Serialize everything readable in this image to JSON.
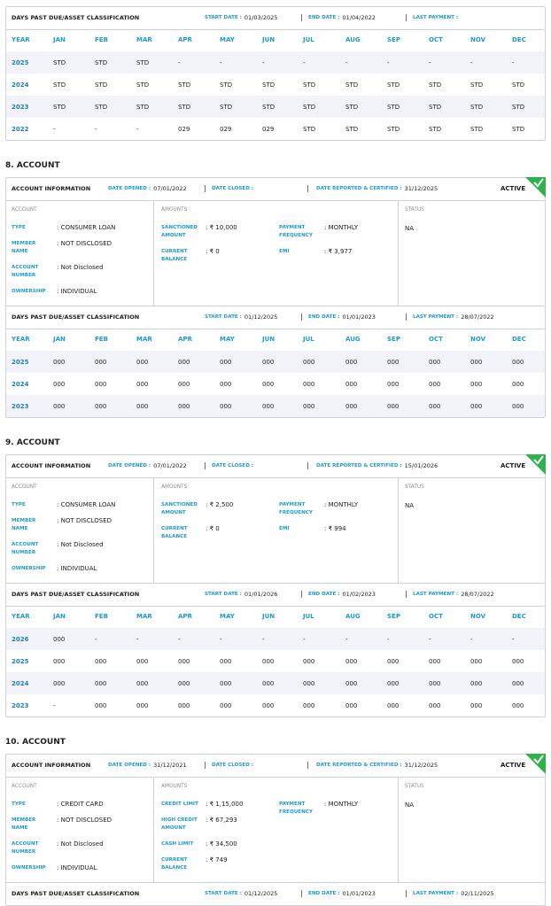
{
  "sections": [
    {
      "dpd": {
        "title": "DAYS PAST DUE/ASSET CLASSIFICATION",
        "start_label": "START DATE :",
        "start": "01/03/2025",
        "end_label": "END DATE :",
        "end": "01/04/2022",
        "last_label": "LAST PAYMENT :",
        "header": [
          "YEAR",
          "JAN",
          "FEB",
          "MAR",
          "APR",
          "MAY",
          "JUN",
          "JUL",
          "AUG",
          "SEP",
          "OCT",
          "NOV",
          "DEC"
        ],
        "rows": [
          [
            "2025",
            "STD",
            "STD",
            "STD",
            "-",
            "-",
            "-",
            "-",
            "-",
            "-",
            "-",
            "-",
            "-"
          ],
          [
            "2024",
            "STD",
            "STD",
            "STD",
            "STD",
            "STD",
            "STD",
            "STD",
            "STD",
            "STD",
            "STD",
            "STD",
            "STD"
          ],
          [
            "2023",
            "STD",
            "STD",
            "STD",
            "STD",
            "STD",
            "STD",
            "STD",
            "STD",
            "STD",
            "STD",
            "STD",
            "STD"
          ],
          [
            "2022",
            "-",
            "-",
            "-",
            "029",
            "029",
            "029",
            "STD",
            "STD",
            "STD",
            "STD",
            "STD",
            "STD"
          ]
        ]
      }
    },
    {
      "heading": "8. ACCOUNT",
      "info": {
        "title": "ACCOUNT INFORMATION",
        "opened_label": "DATE OPENED :",
        "opened": "07/01/2022",
        "closed_label": "DATE CLOSED :",
        "reported_label": "DATE REPORTED & CERTIFIED :",
        "reported": "31/12/2025",
        "status": "ACTIVE"
      },
      "details": {
        "account_title": "ACCOUNT",
        "fields": [
          {
            "label": "TYPE",
            "value": ": CONSUMER LOAN"
          },
          {
            "label": "MEMBER NAME",
            "value": ": NOT DISCLOSED"
          },
          {
            "label": "ACCOUNT NUMBER",
            "value": ": Not Disclosed"
          },
          {
            "label": "OWNERSHIP",
            "value": ": INDIVIDUAL"
          }
        ],
        "amounts_title": "AMOUNTS",
        "amounts": [
          [
            {
              "label": "SANCTIONED AMOUNT",
              "value": ": ₹ 10,000"
            },
            {
              "label": "CURRENT BALANCE",
              "value": ": ₹ 0"
            }
          ],
          [
            {
              "label": "PAYMENT FREQUENCY",
              "value": ": MONTHLY"
            },
            {
              "label": "EMI",
              "value": ": ₹ 3,977"
            }
          ]
        ],
        "status_title": "STATUS",
        "status": "NA"
      },
      "dpd": {
        "title": "DAYS PAST DUE/ASSET CLASSIFICATION",
        "start_label": "START DATE :",
        "start": "01/12/2025",
        "end_label": "END DATE :",
        "end": "01/01/2023",
        "last_label": "LAST PAYMENT :",
        "last": "28/07/2022",
        "header": [
          "YEAR",
          "JAN",
          "FEB",
          "MAR",
          "APR",
          "MAY",
          "JUN",
          "JUL",
          "AUG",
          "SEP",
          "OCT",
          "NOV",
          "DEC"
        ],
        "rows": [
          [
            "2025",
            "000",
            "000",
            "000",
            "000",
            "000",
            "000",
            "000",
            "000",
            "000",
            "000",
            "000",
            "000"
          ],
          [
            "2024",
            "000",
            "000",
            "000",
            "000",
            "000",
            "000",
            "000",
            "000",
            "000",
            "000",
            "000",
            "000"
          ],
          [
            "2023",
            "000",
            "000",
            "000",
            "000",
            "000",
            "000",
            "000",
            "000",
            "000",
            "000",
            "000",
            "000"
          ]
        ]
      }
    },
    {
      "heading": "9. ACCOUNT",
      "info": {
        "title": "ACCOUNT INFORMATION",
        "opened_label": "DATE OPENED :",
        "opened": "07/01/2022",
        "closed_label": "DATE CLOSED :",
        "reported_label": "DATE REPORTED & CERTIFIED :",
        "reported": "15/01/2026",
        "status": "ACTIVE"
      },
      "details": {
        "account_title": "ACCOUNT",
        "fields": [
          {
            "label": "TYPE",
            "value": ": CONSUMER LOAN"
          },
          {
            "label": "MEMBER NAME",
            "value": ": NOT DISCLOSED"
          },
          {
            "label": "ACCOUNT NUMBER",
            "value": ": Not Disclosed"
          },
          {
            "label": "OWNERSHIP",
            "value": ": INDIVIDUAL"
          }
        ],
        "amounts_title": "AMOUNTS",
        "amounts": [
          [
            {
              "label": "SANCTIONED AMOUNT",
              "value": ": ₹ 2,500"
            },
            {
              "label": "CURRENT BALANCE",
              "value": ": ₹ 0"
            }
          ],
          [
            {
              "label": "PAYMENT FREQUENCY",
              "value": ": MONTHLY"
            },
            {
              "label": "EMI",
              "value": ": ₹ 994"
            }
          ]
        ],
        "status_title": "STATUS",
        "status": "NA"
      },
      "dpd": {
        "title": "DAYS PAST DUE/ASSET CLASSIFICATION",
        "start_label": "START DATE :",
        "start": "01/01/2026",
        "end_label": "END DATE :",
        "end": "01/02/2023",
        "last_label": "LAST PAYMENT :",
        "last": "28/07/2022",
        "header": [
          "YEAR",
          "JAN",
          "FEB",
          "MAR",
          "APR",
          "MAY",
          "JUN",
          "JUL",
          "AUG",
          "SEP",
          "OCT",
          "NOV",
          "DEC"
        ],
        "rows": [
          [
            "2026",
            "000",
            "-",
            "-",
            "-",
            "-",
            "-",
            "-",
            "-",
            "-",
            "-",
            "-",
            "-"
          ],
          [
            "2025",
            "000",
            "000",
            "000",
            "000",
            "000",
            "000",
            "000",
            "000",
            "000",
            "000",
            "000",
            "000"
          ],
          [
            "2024",
            "000",
            "000",
            "000",
            "000",
            "000",
            "000",
            "000",
            "000",
            "000",
            "000",
            "000",
            "000"
          ],
          [
            "2023",
            "-",
            "000",
            "000",
            "000",
            "000",
            "000",
            "000",
            "000",
            "000",
            "000",
            "000",
            "000"
          ]
        ]
      }
    },
    {
      "heading": "10. ACCOUNT",
      "info": {
        "title": "ACCOUNT INFORMATION",
        "opened_label": "DATE OPENED :",
        "opened": "31/12/2021",
        "closed_label": "DATE CLOSED :",
        "reported_label": "DATE REPORTED & CERTIFIED :",
        "reported": "31/12/2025",
        "status": "ACTIVE"
      },
      "details": {
        "account_title": "ACCOUNT",
        "fields": [
          {
            "label": "TYPE",
            "value": ": CREDIT CARD"
          },
          {
            "label": "MEMBER NAME",
            "value": ": NOT DISCLOSED"
          },
          {
            "label": "ACCOUNT NUMBER",
            "value": ": Not Disclosed"
          },
          {
            "label": "OWNERSHIP",
            "value": ": INDIVIDUAL"
          }
        ],
        "amounts_title": "AMOUNTS",
        "amounts": [
          [
            {
              "label": "CREDIT LIMIT",
              "value": ": ₹ 1,15,000"
            },
            {
              "label": "HIGH CREDIT AMOUNT",
              "value": ": ₹ 67,293"
            },
            {
              "label": "CASH LIMIT",
              "value": ": ₹ 34,500"
            },
            {
              "label": "CURRENT BALANCE",
              "value": ": ₹ 749"
            }
          ],
          [
            {
              "label": "PAYMENT FREQUENCY",
              "value": ": MONTHLY"
            }
          ]
        ],
        "status_title": "STATUS",
        "status": "NA"
      },
      "dpd": {
        "title": "DAYS PAST DUE/ASSET CLASSIFICATION",
        "start_label": "START DATE :",
        "start": "01/12/2025",
        "end_label": "END DATE :",
        "end": "01/01/2023",
        "last_label": "LAST PAYMENT :",
        "last": "02/11/2025"
      }
    }
  ]
}
